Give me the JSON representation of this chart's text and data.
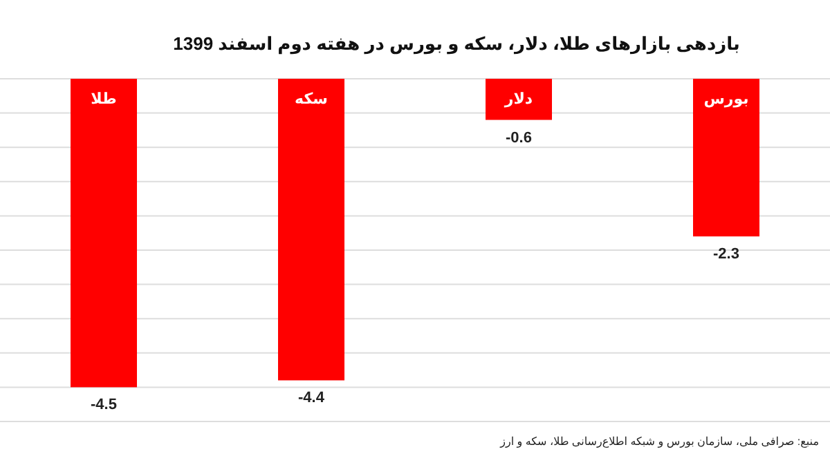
{
  "chart_data": {
    "type": "bar",
    "title": "بازدهی بازارهای طلا، دلار، سکه و بورس در هفته دوم اسفند 1399",
    "categories": [
      "طلا",
      "سکه",
      "دلار",
      "بورس"
    ],
    "values": [
      -4.5,
      -4.4,
      -0.6,
      -2.3
    ],
    "color": "#ff0000",
    "data_labels": true,
    "ylim": [
      -5,
      0
    ],
    "yticks": [
      {
        "value": 0,
        "label": null
      },
      {
        "value": -0.5,
        "label": null
      },
      {
        "value": -1,
        "label": null
      },
      {
        "value": -1.5,
        "label": null
      },
      {
        "value": -2,
        "label": null
      },
      {
        "value": -2.5,
        "label": null
      },
      {
        "value": -3,
        "label": null
      },
      {
        "value": -3.5,
        "label": null
      },
      {
        "value": -4,
        "label": null
      },
      {
        "value": -4.5,
        "label": null
      },
      {
        "value": -5,
        "label": null
      }
    ],
    "grid": "y",
    "tick_labels": "x",
    "annotations": [
      "منبع: صرافی ملی، سازمان بورس و شبکه اطلاع‌رسانی طلا، سکه و ارز"
    ]
  }
}
